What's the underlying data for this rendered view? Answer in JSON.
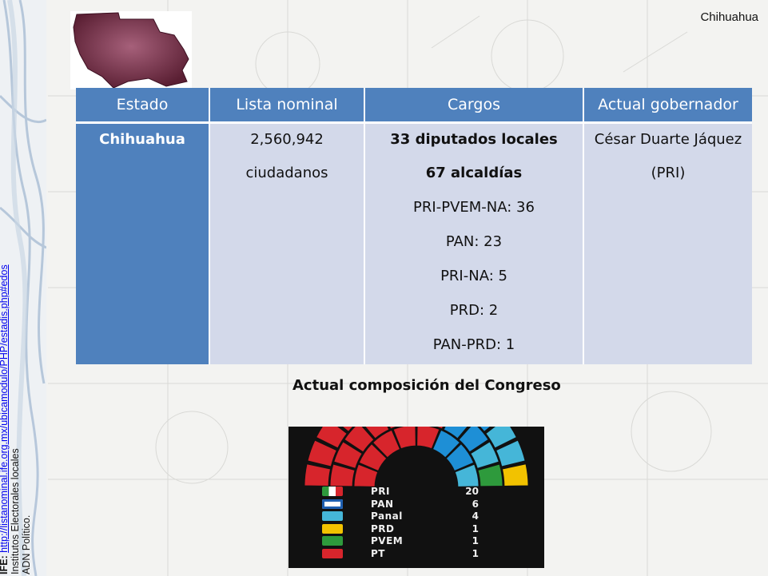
{
  "page": {
    "state_label": "Chihuahua",
    "sources": {
      "ife_prefix": "IFE:",
      "ife_link": "http://listanominal.ife.org.mx/ubicamodulo/PHP/estadis.php#edos",
      "line2": "Institutos Electorales locales",
      "line3": "ADN Político."
    }
  },
  "table": {
    "headers": [
      "Estado",
      "Lista nominal",
      "Cargos",
      "Actual gobernador"
    ],
    "estado": "Chihuahua",
    "lista_nominal": [
      "2,560,942",
      "ciudadanos"
    ],
    "cargos": [
      {
        "text": "33 diputados locales",
        "bold": true
      },
      {
        "text": "67 alcaldías",
        "bold": true
      },
      {
        "text": "PRI-PVEM-NA: 36",
        "bold": false
      },
      {
        "text": "PAN: 23",
        "bold": false
      },
      {
        "text": "PRI-NA: 5",
        "bold": false
      },
      {
        "text": "PRD: 2",
        "bold": false
      },
      {
        "text": "PAN-PRD: 1",
        "bold": false
      }
    ],
    "gobernador": [
      "César Duarte Jáquez",
      "(PRI)"
    ]
  },
  "congreso": {
    "title": "Actual composición del Congreso",
    "parties": [
      {
        "name": "PRI",
        "value": "20",
        "seats": 20,
        "color": "#d7252c",
        "icon": "pri-logo-icon"
      },
      {
        "name": "PAN",
        "value": "6",
        "seats": 6,
        "color": "#1e8fd6",
        "icon": "pan-logo-icon"
      },
      {
        "name": "Panal",
        "value": "4",
        "seats": 4,
        "color": "#45b6d8",
        "icon": "panal-logo-icon"
      },
      {
        "name": "PRD",
        "value": "1",
        "seats": 1,
        "color": "#f2c200",
        "icon": "prd-logo-icon"
      },
      {
        "name": "PVEM",
        "value": "1",
        "seats": 1,
        "color": "#2e9a3c",
        "icon": "pvem-logo-icon"
      },
      {
        "name": "PT",
        "value": "1",
        "seats": 1,
        "color": "#c8202a",
        "icon": "pt-logo-icon"
      }
    ]
  }
}
